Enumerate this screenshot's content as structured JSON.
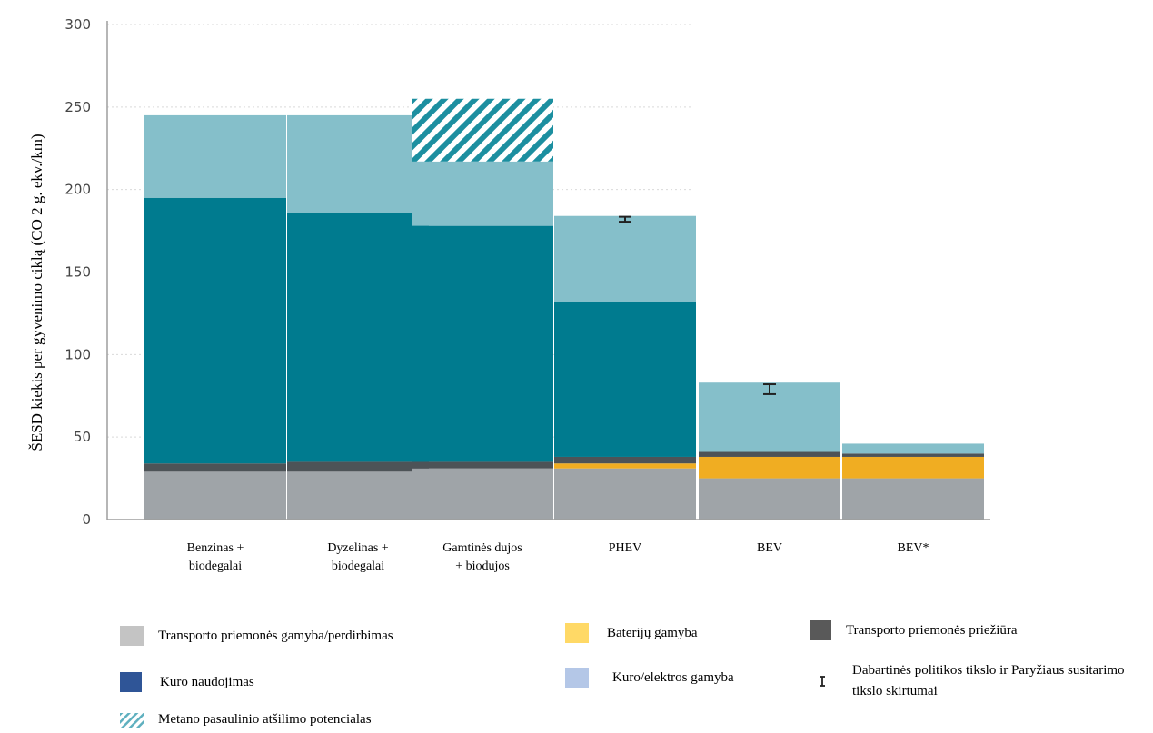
{
  "chart_data": {
    "type": "bar",
    "stacked": true,
    "ylabel": "ŠESD kiekis per gyvenimo ciklą (CO 2 g. ekv./km)",
    "ylim": [
      0,
      300
    ],
    "yticks": [
      0,
      50,
      100,
      150,
      200,
      250,
      300
    ],
    "grid": true,
    "categories": [
      [
        "Benzinas +",
        "biodegalai"
      ],
      [
        "Dyzelinas +",
        "biodegalai"
      ],
      [
        "Gamtinės dujos",
        "+ biodujos"
      ],
      [
        "PHEV"
      ],
      [
        "BEV"
      ],
      [
        "BEV*"
      ]
    ],
    "series": [
      {
        "name": "Transporto priemonės gamyba/perdirbimas",
        "color": "#9fa4a8",
        "values": [
          29,
          29,
          31,
          31,
          25,
          25
        ]
      },
      {
        "name": "Baterijų gamyba",
        "color": "#f0ad22",
        "values": [
          0,
          0,
          0,
          3,
          13,
          13
        ]
      },
      {
        "name": "Transporto priemonės priežiūra",
        "color": "#4d5357",
        "values": [
          5,
          6,
          4,
          4,
          3,
          2
        ]
      },
      {
        "name": "Kuro naudojimas",
        "color": "#007b8f",
        "values": [
          161,
          151,
          143,
          94,
          0,
          0
        ]
      },
      {
        "name": "Kuro/elektros gamyba",
        "color": "#85bfca",
        "values": [
          50,
          59,
          39,
          52,
          42,
          6
        ]
      },
      {
        "name": "Metano pasaulinio atšilimo potencialas",
        "color": "#1c8fa0",
        "pattern": "hatch",
        "values": [
          0,
          0,
          38,
          0,
          0,
          0
        ]
      }
    ],
    "error_bars": [
      {
        "category_index": 3,
        "center": 182,
        "low": 180.5,
        "high": 183.5
      },
      {
        "category_index": 4,
        "center": 79,
        "low": 76,
        "high": 82
      }
    ]
  },
  "legend": [
    {
      "key": "vehicle",
      "label": "Transporto priemonės gamyba/perdirbimas",
      "color": "#c4c4c4",
      "type": "box"
    },
    {
      "key": "battery",
      "label": "Baterijų gamyba",
      "color": "#ffd966",
      "type": "box"
    },
    {
      "key": "maint",
      "label": "Transporto priemonės priežiūra",
      "color": "#595959",
      "type": "box"
    },
    {
      "key": "fuel_use",
      "label": "Kuro naudojimas",
      "color": "#2f5597",
      "type": "box"
    },
    {
      "key": "fuel_prod",
      "label": "Kuro/elektros gamyba",
      "color": "#b4c7e7",
      "type": "box"
    },
    {
      "key": "gap",
      "label": "Dabartinės politikos tikslo ir Paryžiaus susitarimo tikslo skirtumai",
      "type": "errorbar"
    },
    {
      "key": "methane",
      "label": "Metano pasaulinio atšilimo potencialas",
      "color": "#1c8fa0",
      "type": "hatch"
    }
  ]
}
